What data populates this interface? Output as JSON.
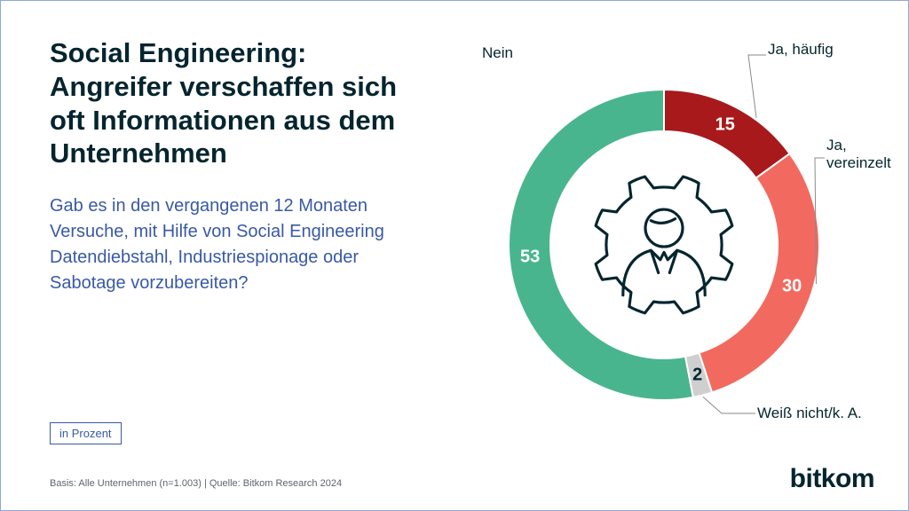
{
  "title": "Social Engineering: Angreifer verschaffen sich oft Informationen aus dem Unternehmen",
  "subtitle": "Gab es in den vergangenen 12 Monaten Versuche, mit Hilfe von Social Engineering Datendiebstahl, Industriespionage oder Sabotage vorzubereiten?",
  "unit_label": "in Prozent",
  "basis": "Basis: Alle Unternehmen (n=1.003) | Quelle: Bitkom Research 2024",
  "logo": "bitkom",
  "chart": {
    "type": "donut",
    "background_color": "#ffffff",
    "ring_outer_r": 175,
    "ring_inner_r": 128,
    "icon_stroke": "#05252e",
    "segments": [
      {
        "label": "Ja, häufig",
        "value": 15,
        "color": "#a8191b",
        "value_color": "#ffffff"
      },
      {
        "label": "Ja, vereinzelt",
        "value": 30,
        "color": "#f26a5f",
        "value_color": "#ffffff"
      },
      {
        "label": "Weiß nicht/k. A.",
        "value": 2,
        "color": "#cfcfcf",
        "value_color": "#05252e"
      },
      {
        "label": "Nein",
        "value": 53,
        "color": "#49b58e",
        "value_color": "#ffffff"
      }
    ],
    "label_fontsize": 17,
    "value_fontsize": 20,
    "leader_stroke": "#8a8a8a"
  },
  "colors": {
    "title": "#05252e",
    "subtitle": "#3959a5",
    "border": "#8fa8d8",
    "basis": "#5a6570"
  }
}
